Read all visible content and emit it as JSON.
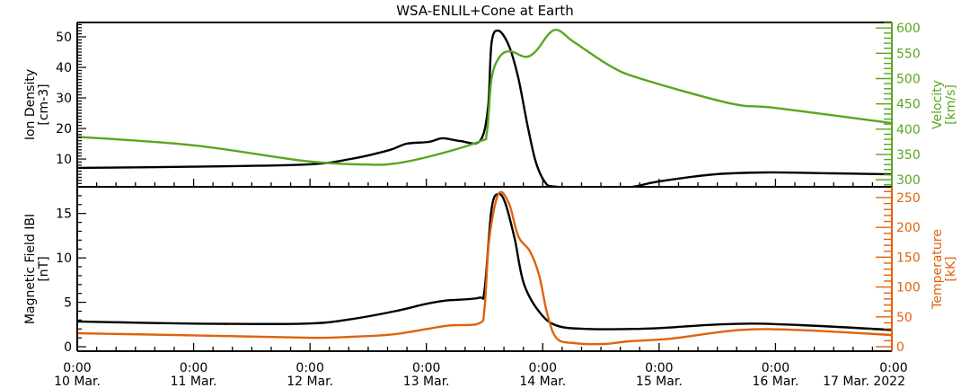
{
  "chart_data": [
    {
      "type": "line",
      "title": "WSA-ENLIL+Cone at Earth",
      "x_unit": "days since 10 Mar. 2022 0:00",
      "xlim": [
        0,
        7
      ],
      "x_tick_labels": [
        [
          "0:00",
          "10 Mar."
        ],
        [
          "0:00",
          "11 Mar."
        ],
        [
          "0:00",
          "12 Mar."
        ],
        [
          "0:00",
          "13 Mar."
        ],
        [
          "0:00",
          "14 Mar."
        ],
        [
          "0:00",
          "15 Mar."
        ],
        [
          "0:00",
          "16 Mar."
        ],
        [
          "0:00",
          "17 Mar. 2022"
        ]
      ],
      "left_axis": {
        "label": "Ion Density",
        "unit": "[cm-3]",
        "ylim": [
          0.9,
          54.7
        ],
        "ticks": [
          10,
          20,
          30,
          40,
          50
        ],
        "color": "#000000"
      },
      "right_axis": {
        "label": "Velocity",
        "unit": "[km/s]",
        "ylim": [
          286,
          611
        ],
        "ticks": [
          300,
          350,
          400,
          450,
          500,
          550,
          600
        ],
        "color": "#5aa51e"
      },
      "series": [
        {
          "name": "Ion Density",
          "axis": "left",
          "color": "#000000",
          "x": [
            0,
            1,
            1.96,
            2.35,
            2.68,
            2.83,
            3.02,
            3.14,
            3.29,
            3.46,
            3.53,
            3.56,
            3.62,
            3.71,
            3.79,
            3.87,
            3.94,
            4.02,
            4.1,
            4.4,
            4.75,
            4.99,
            5.48,
            5.92,
            6.5,
            7
          ],
          "y": [
            7.1,
            7.5,
            8.2,
            10,
            12.9,
            15,
            15.6,
            16.8,
            15.9,
            15.9,
            26.8,
            48,
            52,
            47,
            36.5,
            20.9,
            9.1,
            2.4,
            1.0,
            0.5,
            0.8,
            2.6,
            5,
            5.6,
            5.3,
            5
          ]
        },
        {
          "name": "Velocity",
          "axis": "right",
          "color": "#5aa51e",
          "x": [
            0,
            1,
            1.96,
            2.48,
            2.73,
            3.06,
            3.46,
            3.52,
            3.56,
            3.63,
            3.72,
            3.85,
            3.94,
            4.1,
            4.27,
            4.58,
            4.84,
            5.61,
            6.0,
            7
          ],
          "y": [
            385,
            368,
            337,
            330,
            332,
            348,
            376,
            394,
            500,
            543,
            554,
            543,
            554,
            596,
            572,
            525,
            500,
            451,
            442,
            412
          ]
        }
      ]
    },
    {
      "type": "line",
      "xlim": [
        0,
        7
      ],
      "left_axis": {
        "label": "Magnetic Field IBI",
        "unit": "[nT]",
        "ylim": [
          -0.5,
          18
        ],
        "ticks": [
          0,
          5,
          10,
          15
        ],
        "color": "#000000"
      },
      "right_axis": {
        "label": "Temperature",
        "unit": "[kK]",
        "ylim": [
          -7.5,
          268
        ],
        "ticks": [
          0,
          50,
          100,
          150,
          200,
          250
        ],
        "color": "#e0620f"
      },
      "series": [
        {
          "name": "Magnetic Field |B|",
          "axis": "left",
          "color": "#000000",
          "x": [
            0,
            1,
            1.96,
            2.35,
            2.73,
            2.99,
            3.17,
            3.45,
            3.5,
            3.56,
            3.62,
            3.68,
            3.76,
            3.84,
            3.99,
            4.14,
            4.4,
            4.74,
            5.0,
            5.82,
            7
          ],
          "y": [
            2.85,
            2.6,
            2.6,
            3.1,
            4.0,
            4.8,
            5.2,
            5.5,
            6.4,
            15.5,
            17.2,
            16.1,
            12.1,
            7.0,
            3.6,
            2.3,
            2.0,
            2.0,
            2.1,
            2.6,
            1.9
          ]
        },
        {
          "name": "Temperature",
          "axis": "right",
          "color": "#e0620f",
          "x": [
            0,
            1,
            2,
            2.35,
            2.73,
            3.17,
            3.45,
            3.5,
            3.54,
            3.62,
            3.71,
            3.79,
            3.89,
            3.97,
            4.04,
            4.12,
            4.27,
            4.53,
            4.74,
            5.1,
            5.69,
            6.2,
            7
          ],
          "y": [
            22.6,
            19,
            15,
            16.6,
            21,
            35,
            39,
            65,
            180,
            256,
            240,
            185,
            160,
            119,
            54,
            14,
            6,
            4.5,
            9,
            13.5,
            28,
            28,
            19.6
          ]
        }
      ]
    }
  ]
}
